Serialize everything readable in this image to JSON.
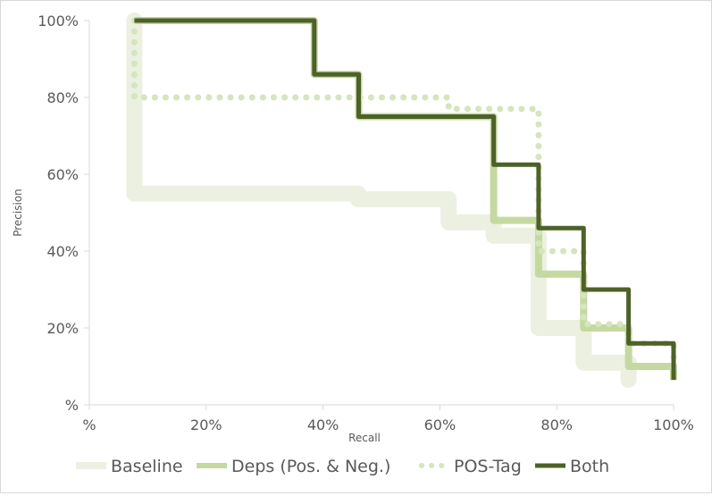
{
  "chart_data": {
    "type": "line",
    "subtype": "step precision-recall curve",
    "xlabel": "Recall",
    "ylabel": "Precision",
    "xlim": [
      0,
      100
    ],
    "ylim": [
      0,
      100
    ],
    "x_ticks": [
      "%",
      "20%",
      "40%",
      "60%",
      "80%",
      "100%"
    ],
    "y_ticks": [
      "%",
      "20%",
      "40%",
      "60%",
      "80%",
      "100%"
    ],
    "grid": false,
    "legend_position": "bottom",
    "series": [
      {
        "name": "Baseline",
        "color": "#ebf0e0",
        "style": "thick-solid",
        "points": [
          [
            7.7,
            100
          ],
          [
            7.7,
            55
          ],
          [
            46,
            55
          ],
          [
            46,
            53.5
          ],
          [
            61.5,
            53.5
          ],
          [
            61.5,
            47.5
          ],
          [
            69.2,
            47.5
          ],
          [
            69.2,
            44
          ],
          [
            76.9,
            44
          ],
          [
            76.9,
            20
          ],
          [
            84.6,
            20
          ],
          [
            84.6,
            11
          ],
          [
            92.3,
            11
          ],
          [
            92.3,
            6.5
          ]
        ]
      },
      {
        "name": "Deps (Pos. & Neg.)",
        "color": "#c4d9a0",
        "style": "solid",
        "points": [
          [
            7.7,
            100
          ],
          [
            38.5,
            100
          ],
          [
            38.5,
            86
          ],
          [
            46.1,
            86
          ],
          [
            46.1,
            75
          ],
          [
            69.2,
            75
          ],
          [
            69.2,
            48
          ],
          [
            76.9,
            48
          ],
          [
            76.9,
            34
          ],
          [
            84.6,
            34
          ],
          [
            84.6,
            20
          ],
          [
            92.3,
            20
          ],
          [
            92.3,
            10
          ],
          [
            100,
            10
          ],
          [
            100,
            6.5
          ]
        ]
      },
      {
        "name": "POS-Tag",
        "color": "#d6e5bd",
        "style": "dotted",
        "points": [
          [
            7.7,
            100
          ],
          [
            7.7,
            80
          ],
          [
            61.5,
            80
          ],
          [
            61.5,
            77
          ],
          [
            76.9,
            77
          ],
          [
            76.9,
            40
          ],
          [
            84.6,
            40
          ],
          [
            84.6,
            21
          ],
          [
            92.3,
            21
          ],
          [
            92.3,
            16
          ],
          [
            100,
            16
          ],
          [
            100,
            8
          ]
        ]
      },
      {
        "name": "Both",
        "color": "#4e6128",
        "style": "solid",
        "points": [
          [
            7.7,
            100
          ],
          [
            38.5,
            100
          ],
          [
            38.5,
            86
          ],
          [
            46.1,
            86
          ],
          [
            46.1,
            75
          ],
          [
            69.2,
            75
          ],
          [
            69.2,
            62.5
          ],
          [
            76.9,
            62.5
          ],
          [
            76.9,
            46
          ],
          [
            84.6,
            46
          ],
          [
            84.6,
            30
          ],
          [
            92.3,
            30
          ],
          [
            92.3,
            16
          ],
          [
            100,
            16
          ],
          [
            100,
            6.5
          ]
        ]
      }
    ]
  }
}
